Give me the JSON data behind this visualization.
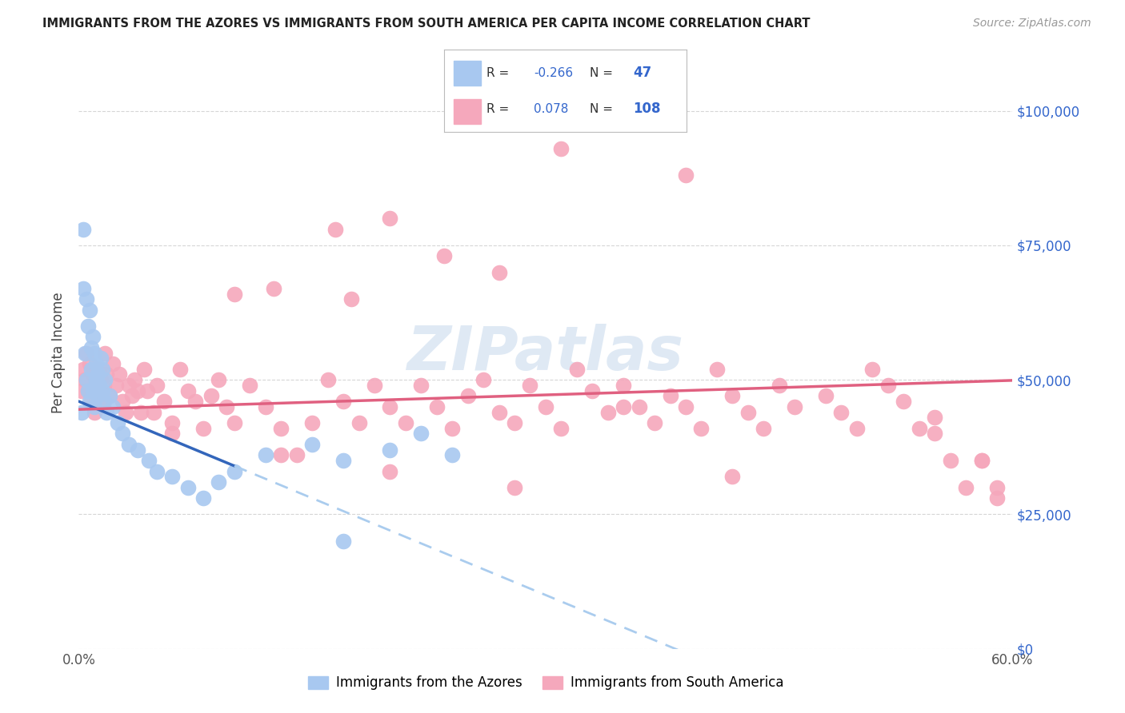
{
  "title": "IMMIGRANTS FROM THE AZORES VS IMMIGRANTS FROM SOUTH AMERICA PER CAPITA INCOME CORRELATION CHART",
  "source": "Source: ZipAtlas.com",
  "ylabel": "Per Capita Income",
  "legend_label_blue": "Immigrants from the Azores",
  "legend_label_pink": "Immigrants from South America",
  "color_blue": "#a8c8f0",
  "color_pink": "#f5a8bc",
  "color_line_blue": "#3366bb",
  "color_line_pink": "#e06080",
  "color_dashed_blue": "#aaccee",
  "color_r_n": "#3366cc",
  "color_grid": "#cccccc",
  "background": "#ffffff",
  "watermark": "ZIPatlas",
  "xlim": [
    0.0,
    0.6
  ],
  "ylim": [
    0,
    110000
  ],
  "ytick_vals": [
    0,
    25000,
    50000,
    75000,
    100000
  ],
  "ytick_labels": [
    "$0",
    "$25,000",
    "$50,000",
    "$75,000",
    "$100,000"
  ],
  "xtick_vals": [
    0.0,
    0.1,
    0.2,
    0.3,
    0.4,
    0.5,
    0.6
  ],
  "xtick_labels": [
    "0.0%",
    "",
    "",
    "",
    "",
    "",
    "60.0%"
  ],
  "blue_x": [
    0.002,
    0.003,
    0.004,
    0.005,
    0.005,
    0.006,
    0.006,
    0.007,
    0.007,
    0.008,
    0.008,
    0.009,
    0.009,
    0.01,
    0.01,
    0.011,
    0.011,
    0.012,
    0.012,
    0.013,
    0.014,
    0.015,
    0.015,
    0.016,
    0.017,
    0.018,
    0.02,
    0.022,
    0.025,
    0.028,
    0.032,
    0.038,
    0.045,
    0.05,
    0.06,
    0.07,
    0.08,
    0.09,
    0.1,
    0.12,
    0.15,
    0.17,
    0.2,
    0.22,
    0.24,
    0.003,
    0.17
  ],
  "blue_y": [
    44000,
    78000,
    55000,
    50000,
    65000,
    48000,
    60000,
    46000,
    63000,
    52000,
    56000,
    48000,
    58000,
    45000,
    55000,
    50000,
    53000,
    47000,
    51000,
    49000,
    54000,
    48000,
    52000,
    46000,
    50000,
    44000,
    47000,
    45000,
    42000,
    40000,
    38000,
    37000,
    35000,
    33000,
    32000,
    30000,
    28000,
    31000,
    33000,
    36000,
    38000,
    35000,
    37000,
    40000,
    36000,
    67000,
    20000
  ],
  "pink_x": [
    0.002,
    0.003,
    0.004,
    0.005,
    0.006,
    0.007,
    0.008,
    0.009,
    0.01,
    0.011,
    0.012,
    0.013,
    0.014,
    0.015,
    0.016,
    0.017,
    0.018,
    0.02,
    0.022,
    0.024,
    0.026,
    0.028,
    0.03,
    0.032,
    0.034,
    0.036,
    0.038,
    0.04,
    0.042,
    0.044,
    0.048,
    0.05,
    0.055,
    0.06,
    0.065,
    0.07,
    0.075,
    0.08,
    0.085,
    0.09,
    0.095,
    0.1,
    0.11,
    0.12,
    0.13,
    0.14,
    0.15,
    0.16,
    0.17,
    0.18,
    0.19,
    0.2,
    0.21,
    0.22,
    0.23,
    0.24,
    0.25,
    0.26,
    0.27,
    0.28,
    0.29,
    0.3,
    0.31,
    0.32,
    0.33,
    0.34,
    0.35,
    0.36,
    0.37,
    0.38,
    0.39,
    0.4,
    0.41,
    0.42,
    0.43,
    0.44,
    0.45,
    0.46,
    0.48,
    0.49,
    0.5,
    0.51,
    0.52,
    0.53,
    0.54,
    0.55,
    0.56,
    0.57,
    0.58,
    0.59,
    0.165,
    0.2,
    0.235,
    0.27,
    0.31,
    0.39,
    0.125,
    0.175,
    0.1,
    0.06,
    0.58,
    0.59,
    0.55,
    0.42,
    0.35,
    0.28,
    0.2,
    0.13
  ],
  "pink_y": [
    48000,
    52000,
    50000,
    55000,
    48000,
    53000,
    46000,
    51000,
    44000,
    49000,
    47000,
    52000,
    50000,
    46000,
    49000,
    55000,
    51000,
    47000,
    53000,
    49000,
    51000,
    46000,
    44000,
    49000,
    47000,
    50000,
    48000,
    44000,
    52000,
    48000,
    44000,
    49000,
    46000,
    42000,
    52000,
    48000,
    46000,
    41000,
    47000,
    50000,
    45000,
    42000,
    49000,
    45000,
    41000,
    36000,
    42000,
    50000,
    46000,
    42000,
    49000,
    45000,
    42000,
    49000,
    45000,
    41000,
    47000,
    50000,
    44000,
    42000,
    49000,
    45000,
    41000,
    52000,
    48000,
    44000,
    49000,
    45000,
    42000,
    47000,
    45000,
    41000,
    52000,
    47000,
    44000,
    41000,
    49000,
    45000,
    47000,
    44000,
    41000,
    52000,
    49000,
    46000,
    41000,
    40000,
    35000,
    30000,
    35000,
    28000,
    78000,
    80000,
    73000,
    70000,
    93000,
    88000,
    67000,
    65000,
    66000,
    40000,
    35000,
    30000,
    43000,
    32000,
    45000,
    30000,
    33000,
    36000
  ],
  "blue_line_solid_end": 0.1,
  "blue_line_dash_end": 0.6,
  "pink_line_start": 0.0,
  "pink_line_end": 0.6,
  "blue_intercept": 46000,
  "blue_slope": -120000,
  "pink_intercept": 44500,
  "pink_slope": 9000
}
